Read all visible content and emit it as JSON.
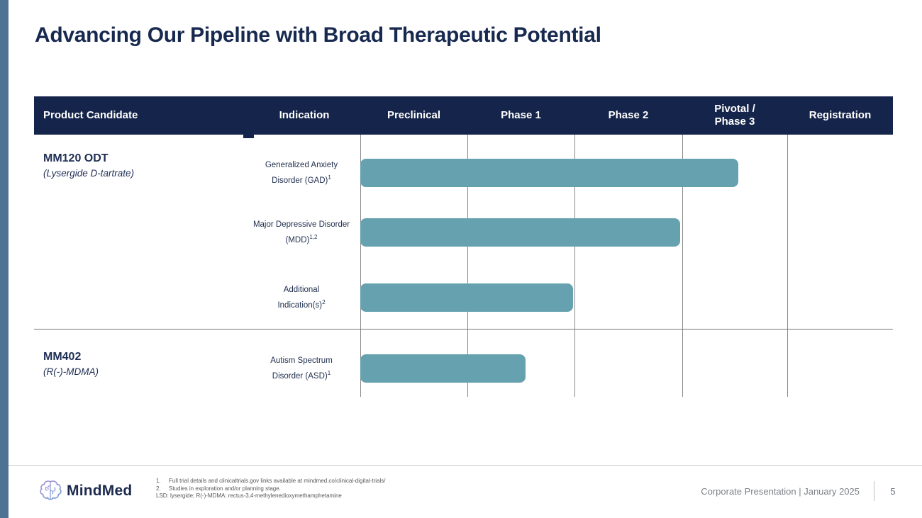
{
  "slide": {
    "title": "Advancing Our Pipeline with Broad Therapeutic Potential"
  },
  "table": {
    "headers": [
      {
        "label": "Product Candidate"
      },
      {
        "label": "Indication"
      },
      {
        "label": "Preclinical"
      },
      {
        "label": "Phase 1"
      },
      {
        "label": "Phase 2"
      },
      {
        "line1": "Pivotal /",
        "line2": "Phase 3"
      },
      {
        "label": "Registration"
      }
    ]
  },
  "products": [
    {
      "name": "MM120 ODT",
      "sub": "(Lysergide D-tartrate)"
    },
    {
      "name": "MM402",
      "sub": "(R(-)-MDMA)"
    }
  ],
  "indications": [
    {
      "line1": "Generalized Anxiety",
      "line2": "Disorder (GAD)",
      "sup": "1"
    },
    {
      "line1": "Major Depressive Disorder",
      "line2": "(MDD)",
      "sup": "1,2"
    },
    {
      "line1": "Additional",
      "line2": "Indication(s)",
      "sup": "2"
    },
    {
      "line1": "Autism Spectrum",
      "line2": "Disorder (ASD)",
      "sup": "1"
    }
  ],
  "chart_data": {
    "type": "bar",
    "variant": "pipeline-gantt",
    "title": "Advancing Our Pipeline with Broad Therapeutic Potential",
    "phases": [
      "Preclinical",
      "Phase 1",
      "Phase 2",
      "Pivotal / Phase 3",
      "Registration"
    ],
    "bar_color": "#65a1af",
    "bars": [
      {
        "product": "MM120 ODT (Lysergide D-tartrate)",
        "indication": "Generalized Anxiety Disorder (GAD)¹",
        "start_phase": 0,
        "end_phase": 3.55
      },
      {
        "product": "MM120 ODT (Lysergide D-tartrate)",
        "indication": "Major Depressive Disorder (MDD)¹,²",
        "start_phase": 0,
        "end_phase": 3.0
      },
      {
        "product": "MM120 ODT (Lysergide D-tartrate)",
        "indication": "Additional Indication(s)²",
        "start_phase": 0,
        "end_phase": 2.0
      },
      {
        "product": "MM402 (R(-)-MDMA)",
        "indication": "Autism Spectrum Disorder (ASD)¹",
        "start_phase": 0,
        "end_phase": 1.55
      }
    ],
    "layout_hints": {
      "orientation": "horizontal",
      "grid": "vertical-phase-lines",
      "all_bars_start_at": "Preclinical"
    }
  },
  "footer": {
    "logo_text": "MindMed",
    "footnotes": [
      {
        "num": "1.",
        "text": "Full trial details and clinicaltrials.gov links available at mindmed.co/clinical-digital-trials/"
      },
      {
        "num": "2.",
        "text": "Studies in exploration and/or planning stage."
      }
    ],
    "abbreviations": "LSD: lysergide; R(-)-MDMA: rectus-3,4-methylenedioxymethamphetamine",
    "right_text": "Corporate Presentation | January 2025",
    "page_number": "5"
  },
  "colors": {
    "accent_stripe": "#4e7292",
    "header_bg": "#15244a",
    "title_navy": "#17294f",
    "bar_teal": "#65a1af"
  }
}
